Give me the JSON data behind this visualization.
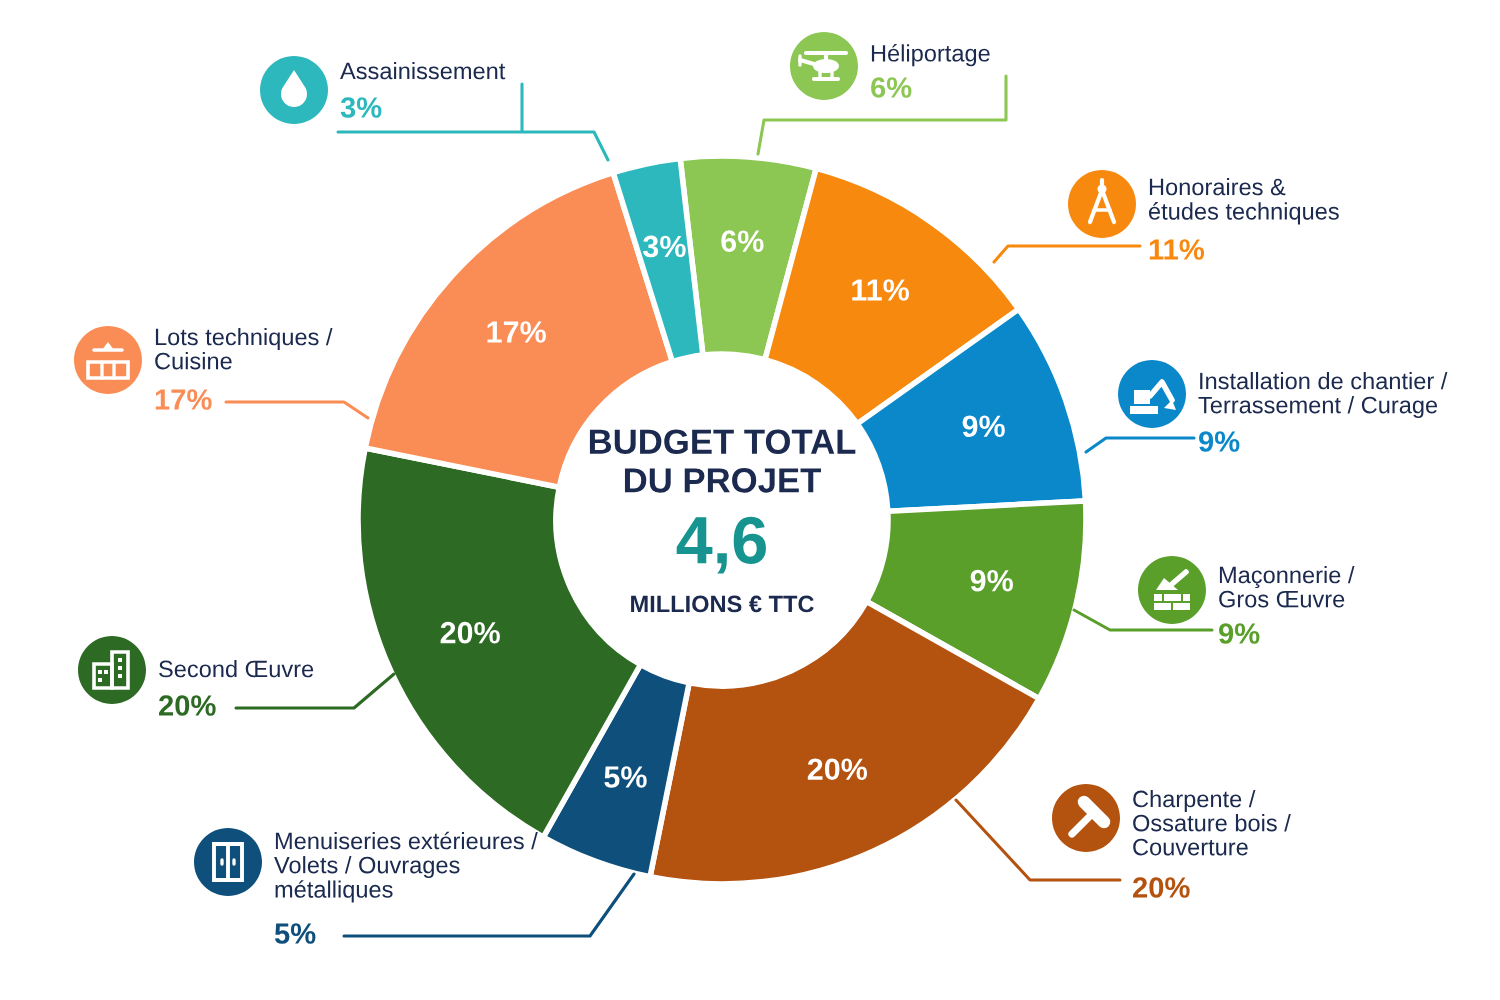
{
  "chart_data": {
    "type": "donut",
    "title": "BUDGET TOTAL\nDU PROJET",
    "annotations": [
      "4,6",
      "MILLIONS € TTC"
    ],
    "categories": [
      "Héliportage",
      "Honoraires &\nétudes techniques",
      "Installation de chantier /\nTerrassement / Curage",
      "Maçonnerie /\nGros Œuvre",
      "Charpente /\nOssature bois /\nCouverture",
      "Menuiseries extérieures /\nVolets / Ouvrages\nmétalliques",
      "Second Œuvre",
      "Lots techniques /\nCuisine",
      "Assainissement"
    ],
    "values": [
      6,
      11,
      9,
      9,
      20,
      5,
      20,
      17,
      3
    ],
    "value_labels": [
      "6%",
      "11%",
      "9%",
      "9%",
      "20%",
      "5%",
      "20%",
      "17%",
      "3%"
    ],
    "colors": [
      "#8cc653",
      "#f7890f",
      "#0b88c9",
      "#5a9f2a",
      "#b4520f",
      "#0e4f7c",
      "#2d6a23",
      "#fa8c55",
      "#2cb8bc"
    ]
  }
}
